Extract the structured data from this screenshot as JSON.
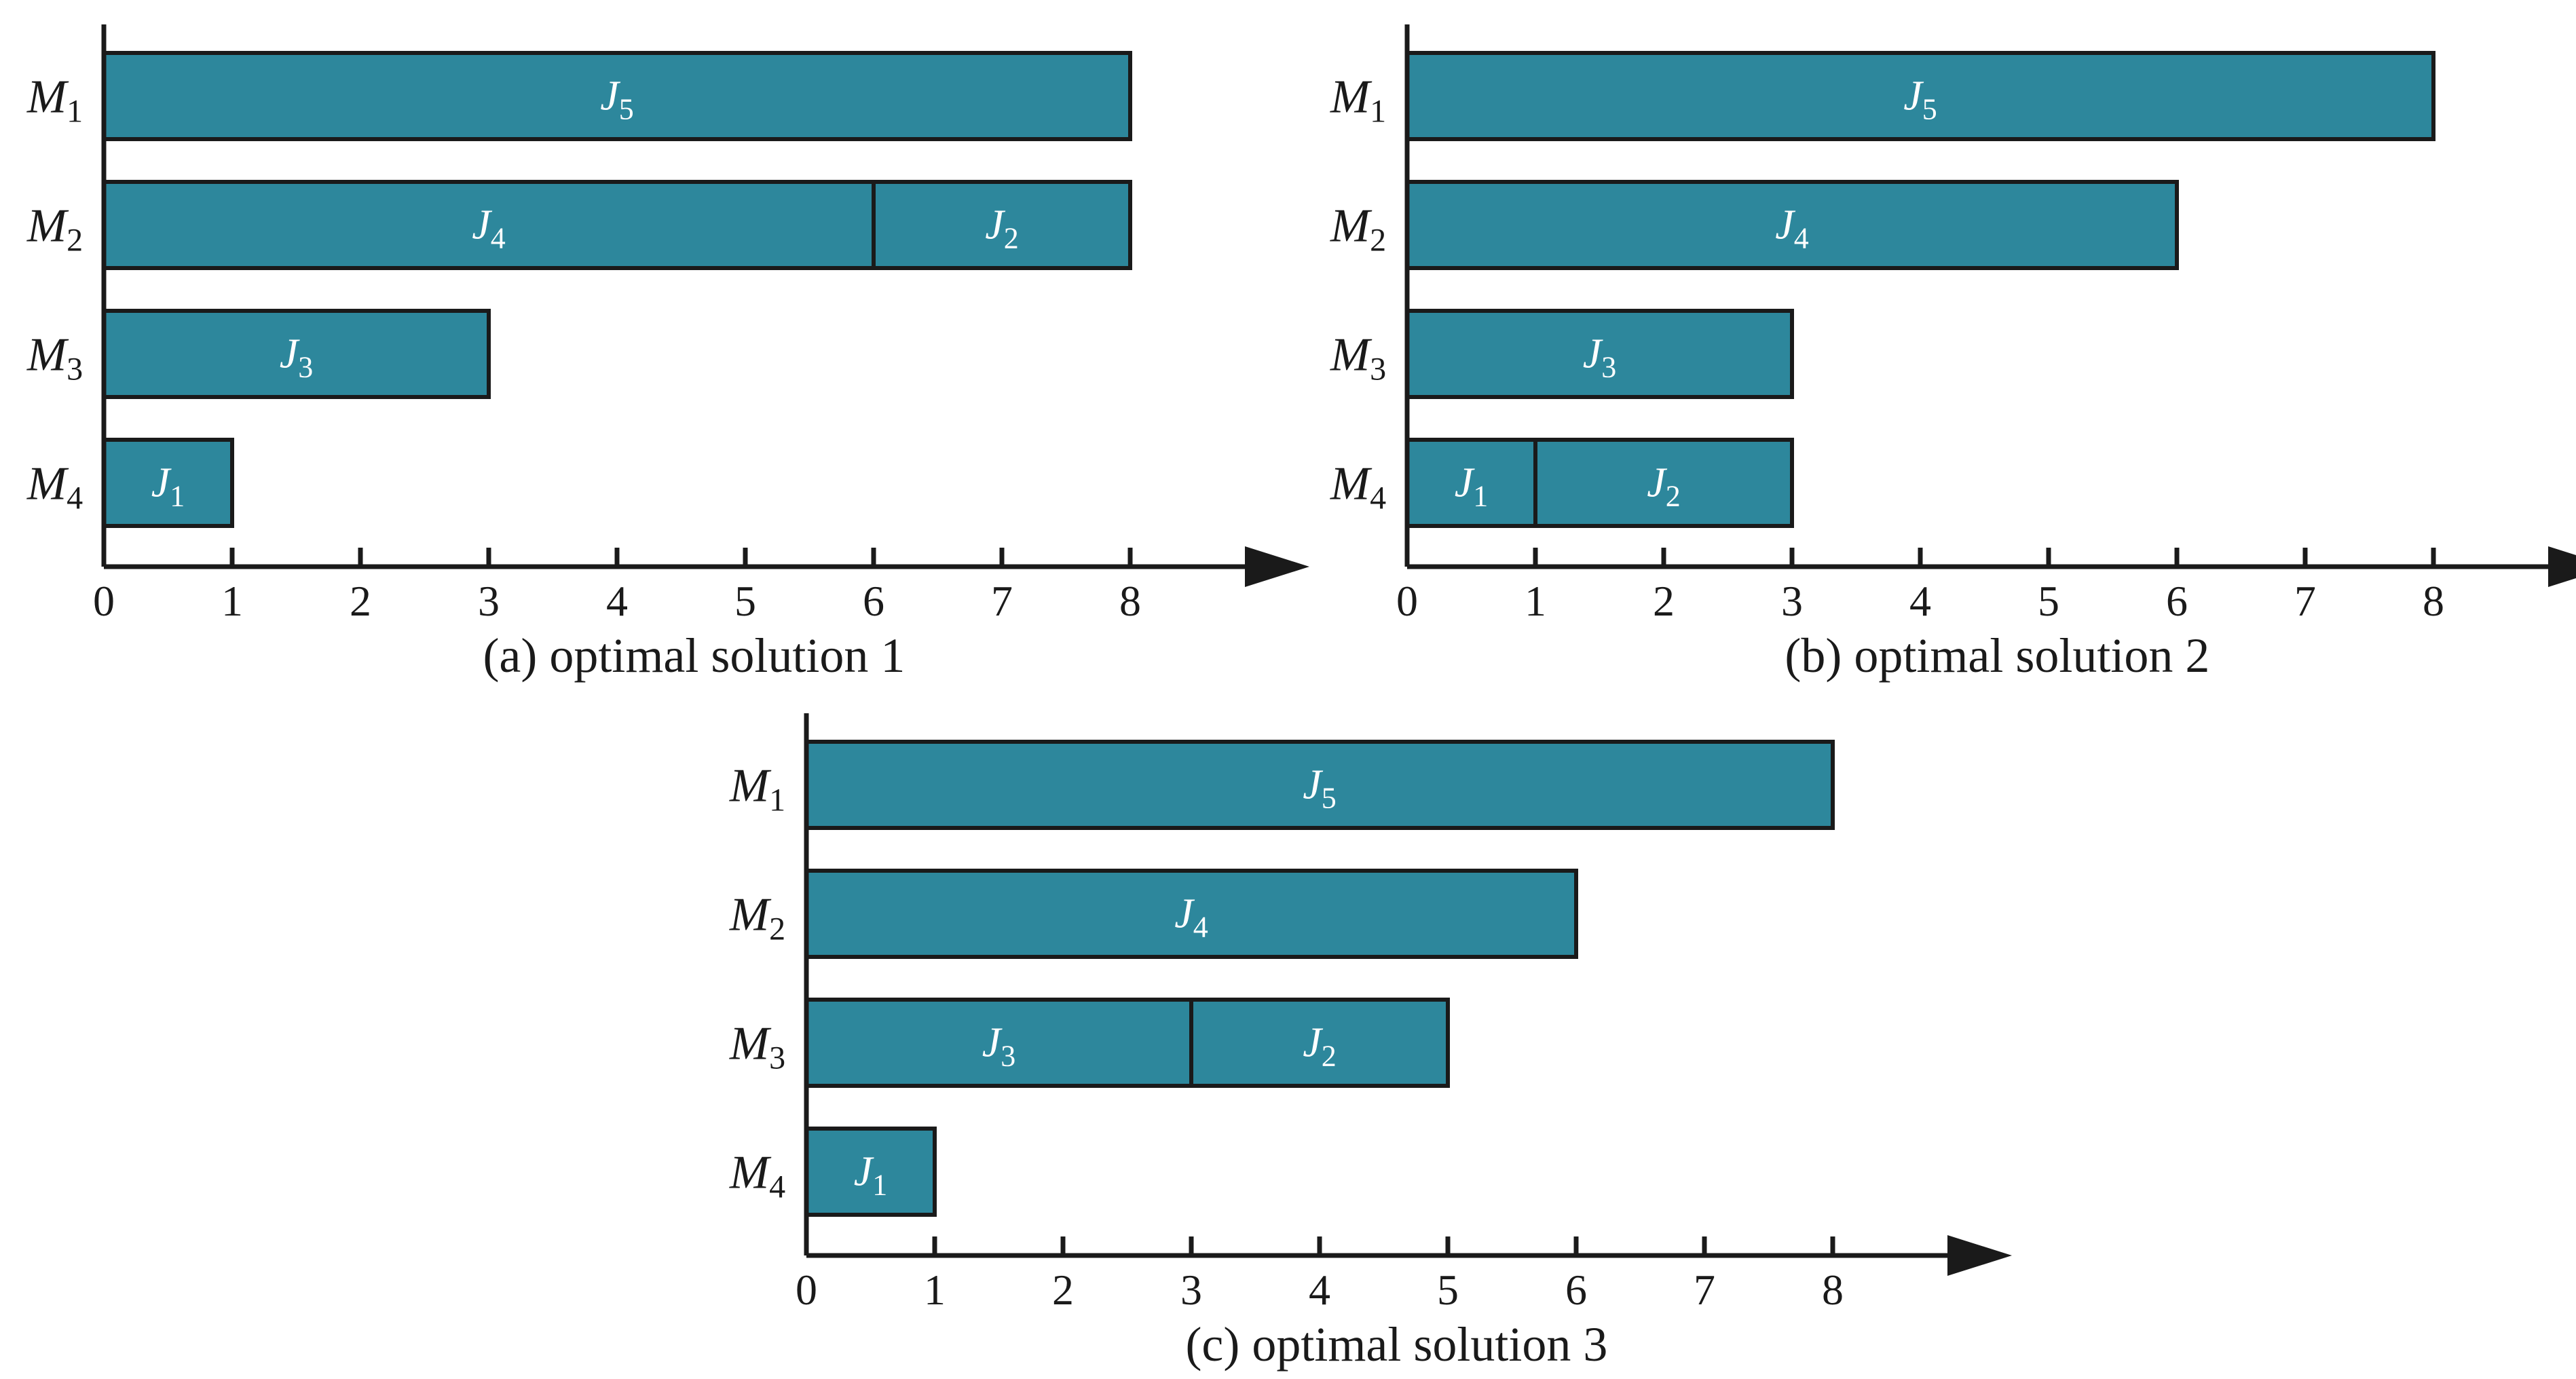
{
  "chart_data": [
    {
      "type": "gantt",
      "caption": "(a) optimal solution 1",
      "machines": [
        {
          "name": "M",
          "sub": "1",
          "jobs": [
            {
              "name": "J",
              "sub": "5",
              "start": 0,
              "end": 8
            }
          ]
        },
        {
          "name": "M",
          "sub": "2",
          "jobs": [
            {
              "name": "J",
              "sub": "4",
              "start": 0,
              "end": 6
            },
            {
              "name": "J",
              "sub": "2",
              "start": 6,
              "end": 8
            }
          ]
        },
        {
          "name": "M",
          "sub": "3",
          "jobs": [
            {
              "name": "J",
              "sub": "3",
              "start": 0,
              "end": 3
            }
          ]
        },
        {
          "name": "M",
          "sub": "4",
          "jobs": [
            {
              "name": "J",
              "sub": "1",
              "start": 0,
              "end": 1
            }
          ]
        }
      ],
      "x_ticks": [
        "0",
        "1",
        "2",
        "3",
        "4",
        "5",
        "6",
        "7",
        "8"
      ],
      "xlim": [
        0,
        9
      ]
    },
    {
      "type": "gantt",
      "caption": "(b) optimal solution 2",
      "machines": [
        {
          "name": "M",
          "sub": "1",
          "jobs": [
            {
              "name": "J",
              "sub": "5",
              "start": 0,
              "end": 8
            }
          ]
        },
        {
          "name": "M",
          "sub": "2",
          "jobs": [
            {
              "name": "J",
              "sub": "4",
              "start": 0,
              "end": 6
            }
          ]
        },
        {
          "name": "M",
          "sub": "3",
          "jobs": [
            {
              "name": "J",
              "sub": "3",
              "start": 0,
              "end": 3
            }
          ]
        },
        {
          "name": "M",
          "sub": "4",
          "jobs": [
            {
              "name": "J",
              "sub": "1",
              "start": 0,
              "end": 1
            },
            {
              "name": "J",
              "sub": "2",
              "start": 1,
              "end": 3
            }
          ]
        }
      ],
      "x_ticks": [
        "0",
        "1",
        "2",
        "3",
        "4",
        "5",
        "6",
        "7",
        "8"
      ],
      "xlim": [
        0,
        9
      ]
    },
    {
      "type": "gantt",
      "caption": "(c) optimal solution 3",
      "machines": [
        {
          "name": "M",
          "sub": "1",
          "jobs": [
            {
              "name": "J",
              "sub": "5",
              "start": 0,
              "end": 8
            }
          ]
        },
        {
          "name": "M",
          "sub": "2",
          "jobs": [
            {
              "name": "J",
              "sub": "4",
              "start": 0,
              "end": 6
            }
          ]
        },
        {
          "name": "M",
          "sub": "3",
          "jobs": [
            {
              "name": "J",
              "sub": "3",
              "start": 0,
              "end": 3
            },
            {
              "name": "J",
              "sub": "2",
              "start": 3,
              "end": 5
            }
          ]
        },
        {
          "name": "M",
          "sub": "4",
          "jobs": [
            {
              "name": "J",
              "sub": "1",
              "start": 0,
              "end": 1
            }
          ]
        }
      ],
      "x_ticks": [
        "0",
        "1",
        "2",
        "3",
        "4",
        "5",
        "6",
        "7",
        "8"
      ],
      "xlim": [
        0,
        9
      ]
    }
  ],
  "colors": {
    "bar": "#2d879c",
    "outline": "#1a1a1a"
  }
}
